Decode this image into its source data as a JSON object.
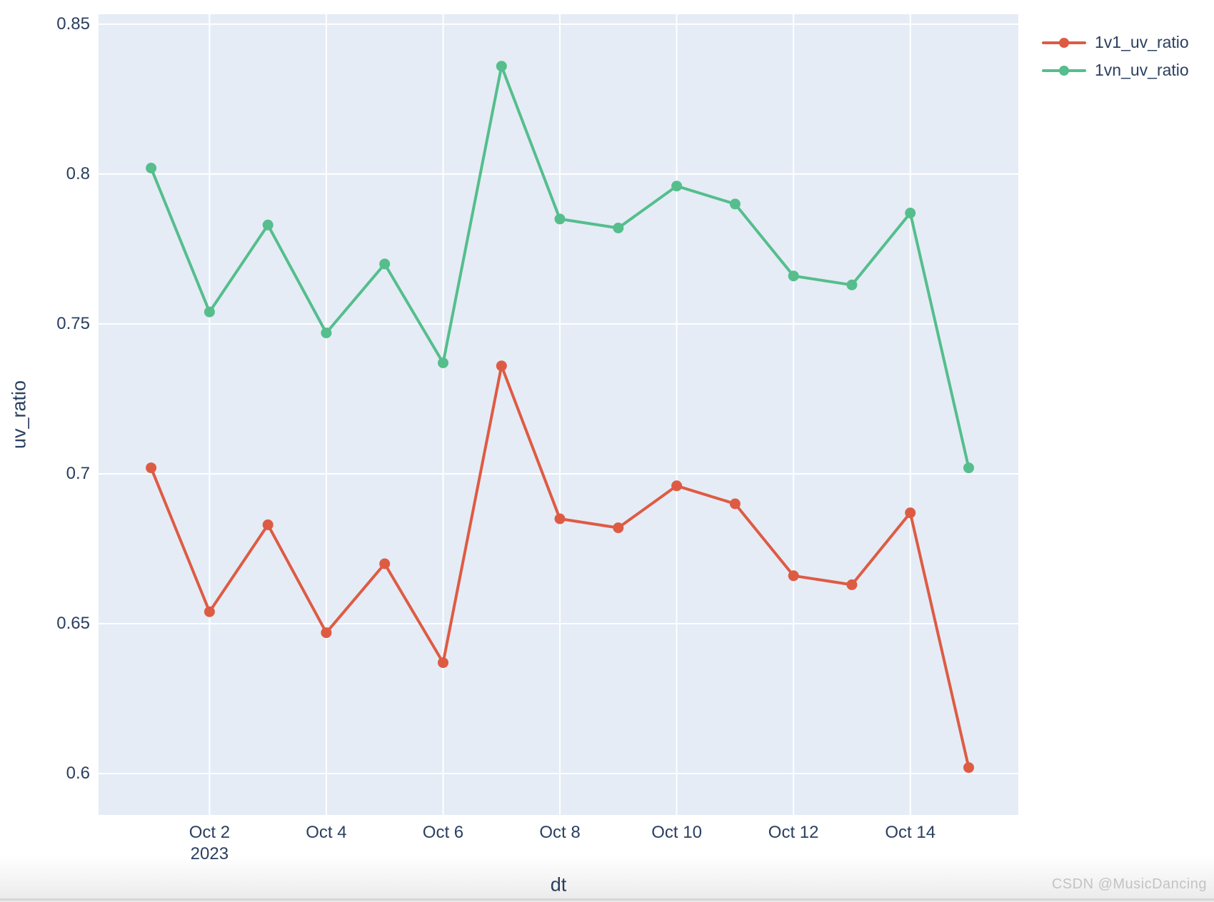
{
  "watermark": "CSDN @MusicDancing",
  "chart_data": {
    "type": "line",
    "title": "",
    "xlabel": "dt",
    "ylabel": "uv_ratio",
    "x_dates": [
      "Oct 1 2023",
      "Oct 2 2023",
      "Oct 3 2023",
      "Oct 4 2023",
      "Oct 5 2023",
      "Oct 6 2023",
      "Oct 7 2023",
      "Oct 8 2023",
      "Oct 9 2023",
      "Oct 10 2023",
      "Oct 11 2023",
      "Oct 12 2023",
      "Oct 13 2023",
      "Oct 14 2023",
      "Oct 15 2023"
    ],
    "series": [
      {
        "name": "1v1_uv_ratio",
        "color": "#DE5B43",
        "values": [
          0.702,
          0.654,
          0.683,
          0.647,
          0.67,
          0.637,
          0.736,
          0.685,
          0.682,
          0.696,
          0.69,
          0.666,
          0.663,
          0.687,
          0.602
        ]
      },
      {
        "name": "1vn_uv_ratio",
        "color": "#55BE8C",
        "values": [
          0.802,
          0.754,
          0.783,
          0.747,
          0.77,
          0.737,
          0.836,
          0.785,
          0.782,
          0.796,
          0.79,
          0.766,
          0.763,
          0.787,
          0.702
        ]
      }
    ],
    "yticks": {
      "values": [
        0.85,
        0.8,
        0.75,
        0.7,
        0.65,
        0.6
      ],
      "labels": [
        "0.85",
        "0.8",
        "0.75",
        "0.7",
        "0.65",
        "0.6"
      ]
    },
    "xticks": [
      {
        "index": 1,
        "label": "Oct 2",
        "sublabel": "2023"
      },
      {
        "index": 3,
        "label": "Oct 4",
        "sublabel": ""
      },
      {
        "index": 5,
        "label": "Oct 6",
        "sublabel": ""
      },
      {
        "index": 7,
        "label": "Oct 8",
        "sublabel": ""
      },
      {
        "index": 9,
        "label": "Oct 10",
        "sublabel": ""
      },
      {
        "index": 11,
        "label": "Oct 12",
        "sublabel": ""
      },
      {
        "index": 13,
        "label": "Oct 14",
        "sublabel": ""
      }
    ],
    "ylim": [
      0.5862,
      0.8533
    ],
    "xlim_day_index": [
      -0.9,
      14.85
    ],
    "grid": true,
    "plot_bg": "#E5ECF6",
    "grid_color": "#FFFFFF",
    "tick_color": "#2a3f5f",
    "legend_position": "outside-top-right",
    "line_width": 4,
    "marker_radius": 7.5
  }
}
